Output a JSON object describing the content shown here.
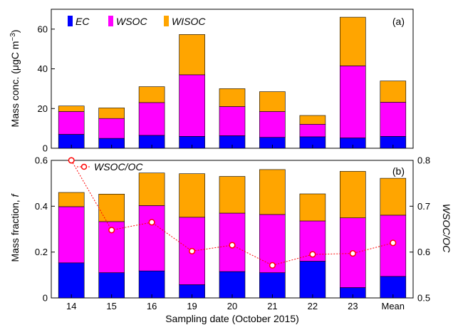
{
  "chart_data": [
    {
      "type": "bar",
      "stacked": true,
      "panel_label": "(a)",
      "categories": [
        "14",
        "15",
        "16",
        "19",
        "20",
        "21",
        "22",
        "23",
        "Mean"
      ],
      "ylabel_prefix": "Mass conc. (μgC m",
      "ylabel_exp": "−3",
      "ylabel_suffix": ")",
      "ylim": [
        0,
        70
      ],
      "yticks": [
        0,
        20,
        40,
        60
      ],
      "series": [
        {
          "name": "EC",
          "color": "#0000ff",
          "values": [
            7.0,
            5.0,
            6.5,
            6.0,
            6.3,
            5.5,
            5.8,
            5.2,
            6.0
          ]
        },
        {
          "name": "WSOC",
          "color": "#ff00ff",
          "values": [
            11.5,
            10.0,
            16.5,
            31.0,
            14.7,
            13.0,
            6.3,
            36.3,
            17.2
          ]
        },
        {
          "name": "WISOC",
          "color": "#ffa500",
          "values": [
            2.8,
            5.3,
            8.0,
            20.3,
            9.0,
            10.0,
            4.4,
            24.5,
            10.7
          ]
        }
      ]
    },
    {
      "type": "bar",
      "stacked": true,
      "panel_label": "(b)",
      "categories": [
        "14",
        "15",
        "16",
        "19",
        "20",
        "21",
        "22",
        "23",
        "Mean"
      ],
      "ylabel": "Mass fraction, ",
      "ylabel_italic": "f",
      "ylim": [
        0,
        0.6
      ],
      "yticks": [
        0,
        0.2,
        0.4,
        0.6
      ],
      "series": [
        {
          "name": "EC",
          "color": "#0000ff",
          "values": [
            0.153,
            0.11,
            0.118,
            0.058,
            0.115,
            0.11,
            0.16,
            0.045,
            0.094
          ]
        },
        {
          "name": "WSOC",
          "color": "#ff00ff",
          "values": [
            0.245,
            0.223,
            0.285,
            0.294,
            0.255,
            0.254,
            0.176,
            0.304,
            0.267
          ]
        },
        {
          "name": "WISOC",
          "color": "#ffa500",
          "values": [
            0.062,
            0.12,
            0.142,
            0.19,
            0.16,
            0.196,
            0.118,
            0.203,
            0.161
          ]
        }
      ],
      "secondary": {
        "type": "line",
        "name": "WSOC/OC",
        "color": "#ff0000",
        "ylabel": "WSOC/OC",
        "ylim": [
          0.5,
          0.8
        ],
        "yticks": [
          0.5,
          0.6,
          0.7,
          0.8
        ],
        "values": [
          0.8,
          0.648,
          0.665,
          0.602,
          0.615,
          0.571,
          0.595,
          0.597,
          0.62
        ]
      },
      "xlabel": "Sampling date (October 2015)"
    }
  ]
}
